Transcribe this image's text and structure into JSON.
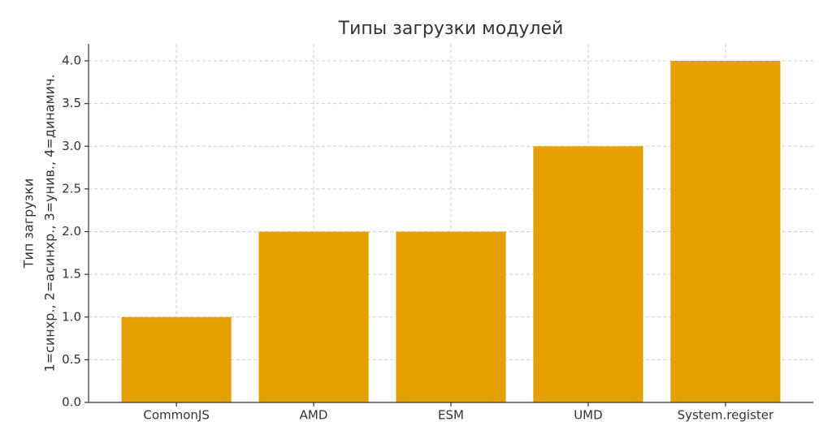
{
  "chart_data": {
    "type": "bar",
    "title": "Типы загрузки модулей",
    "y_label": [
      "Тип загрузки",
      "1=синхр., 2=асинхр., 3=унив., 4=динамич."
    ],
    "categories": [
      "CommonJS",
      "AMD",
      "ESM",
      "UMD",
      "System.register"
    ],
    "values": [
      1,
      2,
      2,
      3,
      4
    ],
    "color": "#e6a000",
    "ylim": [
      0,
      4.2
    ],
    "yticks": [
      {
        "value": 0,
        "label": "0.0"
      },
      {
        "value": 0.5,
        "label": "0.5"
      },
      {
        "value": 1,
        "label": "1.0"
      },
      {
        "value": 1.5,
        "label": "1.5"
      },
      {
        "value": 2,
        "label": "2.0"
      },
      {
        "value": 2.5,
        "label": "2.5"
      },
      {
        "value": 3,
        "label": "3.0"
      },
      {
        "value": 3.5,
        "label": "3.5"
      },
      {
        "value": 4,
        "label": "4.0"
      }
    ],
    "grid": true
  }
}
